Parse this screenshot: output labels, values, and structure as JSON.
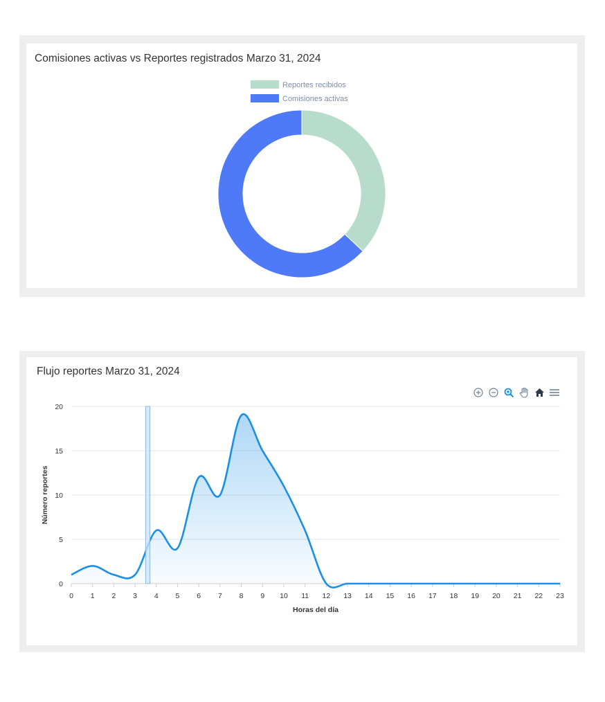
{
  "donut_card": {
    "title": "Comisiones activas vs Reportes registrados Marzo 31, 2024"
  },
  "flow_card": {
    "title": "Flujo reportes Marzo 31, 2024",
    "toolbar": {
      "zoom_in": "zoom-in-icon",
      "zoom_out": "zoom-out-icon",
      "zoom_select": "magnifier-icon",
      "pan": "hand-icon",
      "reset": "home-icon",
      "menu": "menu-icon"
    }
  },
  "chart_data": [
    {
      "type": "pie",
      "variant": "donut",
      "title": "Comisiones activas vs Reportes registrados Marzo 31, 2024",
      "legend_position": "top-center",
      "labels": [
        "Reportes recibidos",
        "Comisiones activas"
      ],
      "values": [
        37,
        63
      ],
      "colors": [
        "#b8dccb",
        "#4f7af7"
      ]
    },
    {
      "type": "area",
      "title": "Flujo reportes Marzo 31, 2024",
      "xlabel": "Horas del día",
      "ylabel": "Número reportes",
      "x": [
        0,
        1,
        2,
        3,
        4,
        5,
        6,
        7,
        8,
        9,
        10,
        11,
        12,
        13,
        14,
        15,
        16,
        17,
        18,
        19,
        20,
        21,
        22,
        23
      ],
      "x_tick_labels": [
        "0",
        "1",
        "2",
        "3",
        "4",
        "5",
        "6",
        "7",
        "8",
        "9",
        "10",
        "11",
        "12",
        "13",
        "14",
        "15",
        "16",
        "17",
        "18",
        "19",
        "20",
        "21",
        "22",
        "23"
      ],
      "y_tick_labels": [
        "0",
        "5",
        "10",
        "15",
        "20"
      ],
      "series": [
        {
          "values": [
            1,
            2,
            1,
            1,
            6,
            4,
            12,
            10,
            19,
            15,
            11,
            6,
            0,
            0,
            0,
            0,
            0,
            0,
            0,
            0,
            0,
            0,
            0,
            0
          ]
        }
      ],
      "xlim": [
        0,
        23
      ],
      "ylim": [
        0,
        20
      ],
      "grid": true,
      "line_color": "#1a8fe8",
      "fill_color": "#1a8fe8",
      "highlight_band": {
        "x_start": 3.5,
        "x_end": 3.7,
        "color": "#cfe4fa",
        "border": "#8cb8e6"
      }
    }
  ]
}
